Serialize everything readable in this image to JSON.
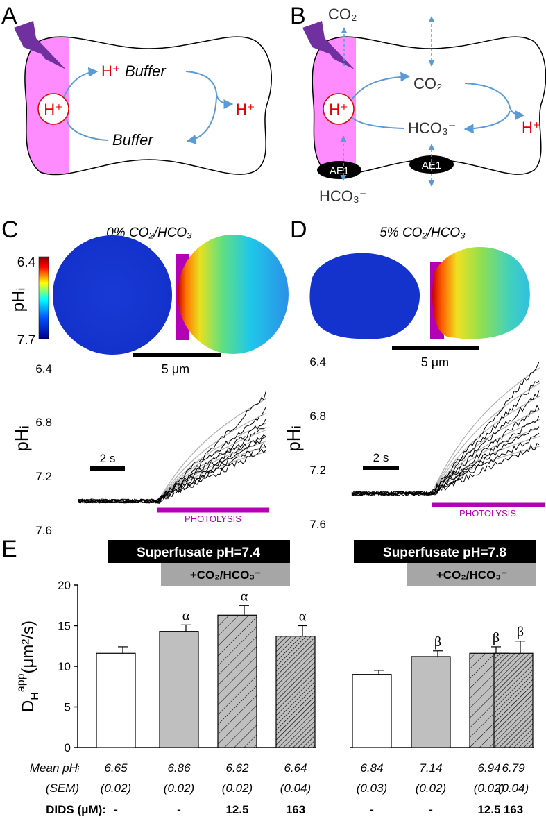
{
  "panels": {
    "A": {
      "letter": "A",
      "proton": "H⁺",
      "hbuffer_h": "H⁺",
      "hbuffer_word": "Buffer",
      "buffer": "Buffer",
      "proton_released": "H⁺"
    },
    "B": {
      "letter": "B",
      "co2_out": "CO₂",
      "proton": "H⁺",
      "co2_in": "CO₂",
      "hco3_in": "HCO₃⁻",
      "proton_released": "H⁺",
      "ae1_left": "AE1",
      "ae1_right": "AE1",
      "hco3_out": "HCO₃⁻"
    },
    "C": {
      "letter": "C",
      "title": "0% CO₂/HCO₃⁻",
      "colorbar_top": "6.4",
      "colorbar_bottom": "7.7",
      "colorbar_label": "pHᵢ",
      "scale_bar": "5 μm",
      "time_bar": "2 s",
      "photolysis": "PHOTOLYSIS",
      "ylabel": "pHᵢ",
      "yticks": [
        "6.4",
        "6.8",
        "7.2",
        "7.6"
      ]
    },
    "D": {
      "letter": "D",
      "title": "5% CO₂/HCO₃⁻",
      "scale_bar": "5 μm",
      "time_bar": "2 s",
      "photolysis": "PHOTOLYSIS",
      "ylabel": "pHᵢ",
      "yticks": [
        "6.4",
        "6.8",
        "7.2",
        "7.6"
      ]
    },
    "E": {
      "letter": "E",
      "header_left": "Superfusate pH=7.4",
      "header_right": "Superfusate pH=7.8",
      "co2_left": "+CO₂/HCO₃⁻",
      "co2_right": "+CO₂/HCO₃⁻",
      "mean_label": "Mean pHᵢ",
      "sem_label": "(SEM)",
      "dids_label": "DIDS (μM):",
      "ylabel_main": "D",
      "ylabel_sub": "H",
      "ylabel_sup": "app",
      "ylabel_units": "(μm²/s)"
    }
  },
  "colors": {
    "magenta": "#b400b4",
    "pink": "#ff8cff",
    "arrow_blue": "#5b9bd5",
    "proton_red": "#e00000",
    "bolt_purple": "#7030a0",
    "bar_gray": "#bfbfbf",
    "header_black": "#000000",
    "header_gray": "#a6a6a6"
  },
  "chart_data": {
    "type": "bar",
    "ylabel": "D_H^app (μm²/s)",
    "ylim": [
      0,
      20
    ],
    "yticks": [
      0,
      5,
      10,
      15,
      20
    ],
    "groups": [
      "Superfusate pH=7.4",
      "Superfusate pH=7.8"
    ],
    "bars": [
      {
        "group": 0,
        "value": 11.6,
        "error": 0.8,
        "fill": "white",
        "marker": "",
        "mean": "6.65",
        "sem": "(0.02)",
        "dids": "-"
      },
      {
        "group": 0,
        "value": 14.3,
        "error": 0.8,
        "fill": "gray",
        "marker": "α",
        "mean": "6.86",
        "sem": "(0.02)",
        "dids": "-"
      },
      {
        "group": 0,
        "value": 16.3,
        "error": 1.2,
        "fill": "gray-hatched",
        "marker": "α",
        "mean": "6.62",
        "sem": "(0.02)",
        "dids": "12.5"
      },
      {
        "group": 0,
        "value": 13.7,
        "error": 1.3,
        "fill": "dark-hatched",
        "marker": "α",
        "mean": "6.64",
        "sem": "(0.04)",
        "dids": "163"
      },
      {
        "group": 1,
        "value": 9.0,
        "error": 0.5,
        "fill": "white",
        "marker": "",
        "mean": "6.84",
        "sem": "(0.03)",
        "dids": "-"
      },
      {
        "group": 1,
        "value": 11.2,
        "error": 0.7,
        "fill": "gray",
        "marker": "β",
        "mean": "7.14",
        "sem": "(0.02)",
        "dids": "-"
      },
      {
        "group": 1,
        "value": 11.6,
        "error": 0.8,
        "fill": "gray-hatched",
        "marker": "β",
        "mean": "6.94",
        "sem": "(0.02)",
        "dids": "12.5"
      },
      {
        "group": 1,
        "value": 11.6,
        "error": 1.5,
        "fill": "dark-hatched",
        "marker": "β",
        "mean": "6.79",
        "sem": "(0.04)",
        "dids": "163"
      }
    ]
  }
}
